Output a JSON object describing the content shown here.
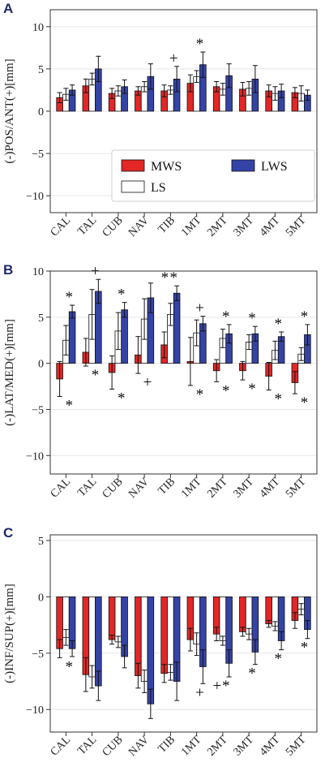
{
  "colors": {
    "MWS": "#e32626",
    "LS": "#ffffff",
    "LWS": "#3443a6"
  },
  "legend": {
    "labels": [
      "MWS",
      "LWS",
      "LS"
    ]
  },
  "chart_data": [
    {
      "type": "bar",
      "panel": "A",
      "ylabel": "(-)POS/ANT(+)[mm]",
      "ylim": [
        -12,
        12
      ],
      "yticks": [
        -10,
        -5,
        0,
        5,
        10
      ],
      "grid": true,
      "legend_placement": "lower-right",
      "categories": [
        "CAL",
        "TAL",
        "CUB",
        "NAV",
        "TIB",
        "1MT",
        "2MT",
        "3MT",
        "4MT",
        "5MT"
      ],
      "series": [
        {
          "name": "MWS",
          "values": [
            1.6,
            3.0,
            2.1,
            2.4,
            2.4,
            3.3,
            2.9,
            2.6,
            2.4,
            2.2
          ],
          "errors": [
            0.6,
            0.8,
            0.6,
            0.5,
            0.7,
            1.0,
            0.6,
            0.8,
            0.7,
            0.6
          ]
        },
        {
          "name": "LS",
          "values": [
            2.0,
            3.8,
            2.4,
            2.9,
            2.5,
            4.1,
            2.6,
            2.7,
            2.1,
            2.1
          ],
          "errors": [
            0.7,
            0.7,
            0.6,
            0.6,
            0.5,
            0.7,
            0.7,
            0.8,
            0.8,
            0.9
          ]
        },
        {
          "name": "LWS",
          "values": [
            2.5,
            5.0,
            2.9,
            4.1,
            3.8,
            5.5,
            4.2,
            3.8,
            2.4,
            1.9
          ],
          "errors": [
            0.6,
            1.5,
            0.8,
            1.5,
            1.5,
            1.5,
            1.4,
            1.6,
            0.8,
            0.6
          ]
        }
      ],
      "annotations": [
        {
          "category": "TIB",
          "text": "+",
          "position": "above"
        },
        {
          "category": "1MT",
          "text": "*",
          "position": "above"
        }
      ]
    },
    {
      "type": "bar",
      "panel": "B",
      "ylabel": "(-)LAT/MED(+)[mm]",
      "ylim": [
        -12,
        10
      ],
      "yticks": [
        -10,
        -5,
        0,
        5,
        10
      ],
      "grid": true,
      "categories": [
        "CAL",
        "TAL",
        "CUB",
        "NAV",
        "TIB",
        "1MT",
        "2MT",
        "3MT",
        "4MT",
        "5MT"
      ],
      "series": [
        {
          "name": "MWS",
          "values": [
            -1.7,
            1.2,
            -1.0,
            0.9,
            2.0,
            0.2,
            -0.8,
            -0.8,
            -1.4,
            -2.1
          ],
          "errors": [
            1.9,
            1.5,
            1.8,
            2.0,
            1.4,
            2.6,
            1.2,
            1.0,
            1.5,
            1.2
          ]
        },
        {
          "name": "LS",
          "values": [
            2.5,
            5.3,
            3.5,
            4.8,
            5.3,
            3.3,
            2.7,
            2.3,
            1.4,
            1.0
          ],
          "errors": [
            1.6,
            2.7,
            2.0,
            2.2,
            1.2,
            1.4,
            1.0,
            0.8,
            1.0,
            0.7
          ]
        },
        {
          "name": "LWS",
          "values": [
            5.6,
            7.8,
            5.8,
            7.1,
            7.6,
            4.3,
            3.2,
            3.2,
            2.9,
            3.1
          ],
          "errors": [
            0.7,
            1.3,
            0.8,
            1.6,
            0.8,
            0.8,
            1.0,
            0.8,
            0.5,
            1.1
          ]
        }
      ],
      "annotations": [
        {
          "category": "CAL",
          "text": "*",
          "position": "above"
        },
        {
          "category": "CAL",
          "text": "*",
          "position": "below"
        },
        {
          "category": "TAL",
          "text": "+",
          "position": "above"
        },
        {
          "category": "TAL",
          "text": "*",
          "position": "below"
        },
        {
          "category": "CUB",
          "text": "*",
          "position": "above"
        },
        {
          "category": "CUB",
          "text": "*",
          "position": "below"
        },
        {
          "category": "NAV",
          "text": "+",
          "position": "below"
        },
        {
          "category": "TIB",
          "text": "*",
          "position": "above-left"
        },
        {
          "category": "TIB",
          "text": "*",
          "position": "above"
        },
        {
          "category": "1MT",
          "text": "+",
          "position": "above"
        },
        {
          "category": "1MT",
          "text": "*",
          "position": "below"
        },
        {
          "category": "2MT",
          "text": "*",
          "position": "above"
        },
        {
          "category": "2MT",
          "text": "*",
          "position": "below"
        },
        {
          "category": "3MT",
          "text": "*",
          "position": "above"
        },
        {
          "category": "3MT",
          "text": "*",
          "position": "below"
        },
        {
          "category": "4MT",
          "text": "*",
          "position": "above"
        },
        {
          "category": "4MT",
          "text": "*",
          "position": "below"
        },
        {
          "category": "5MT",
          "text": "*",
          "position": "above"
        },
        {
          "category": "5MT",
          "text": "*",
          "position": "below"
        }
      ]
    },
    {
      "type": "bar",
      "panel": "C",
      "ylabel": "(-)INF/SUP(+)[mm]",
      "ylim": [
        -12,
        5.5
      ],
      "yticks": [
        -10,
        -5,
        0,
        5
      ],
      "grid": true,
      "categories": [
        "CAL",
        "TAL",
        "CUB",
        "NAV",
        "TIB",
        "1MT",
        "2MT",
        "3MT",
        "4MT",
        "5MT"
      ],
      "series": [
        {
          "name": "MWS",
          "values": [
            -4.6,
            -6.9,
            -3.8,
            -7.0,
            -6.8,
            -3.8,
            -3.3,
            -3.1,
            -2.4,
            -2.1
          ],
          "errors": [
            0.8,
            1.5,
            0.4,
            1.1,
            0.8,
            1.0,
            0.6,
            0.4,
            0.3,
            0.7
          ]
        },
        {
          "name": "LS",
          "values": [
            -3.6,
            -7.1,
            -4.0,
            -7.5,
            -6.7,
            -4.2,
            -3.9,
            -3.3,
            -2.6,
            -1.1
          ],
          "errors": [
            0.7,
            1.0,
            0.5,
            1.0,
            0.7,
            1.0,
            0.4,
            0.5,
            0.4,
            0.5
          ]
        },
        {
          "name": "LWS",
          "values": [
            -4.6,
            -7.9,
            -5.3,
            -9.5,
            -7.5,
            -6.2,
            -5.9,
            -4.9,
            -3.9,
            -2.9
          ],
          "errors": [
            0.7,
            1.3,
            1.0,
            1.3,
            1.7,
            1.5,
            1.2,
            1.1,
            0.8,
            0.8
          ]
        }
      ],
      "annotations": [
        {
          "category": "CAL",
          "text": "*",
          "position": "below"
        },
        {
          "category": "1MT",
          "text": "+",
          "position": "below"
        },
        {
          "category": "2MT",
          "text": "+",
          "position": "below-left"
        },
        {
          "category": "2MT",
          "text": "*",
          "position": "below"
        },
        {
          "category": "3MT",
          "text": "*",
          "position": "below"
        },
        {
          "category": "4MT",
          "text": "*",
          "position": "below"
        },
        {
          "category": "5MT",
          "text": "*",
          "position": "below"
        }
      ]
    }
  ]
}
